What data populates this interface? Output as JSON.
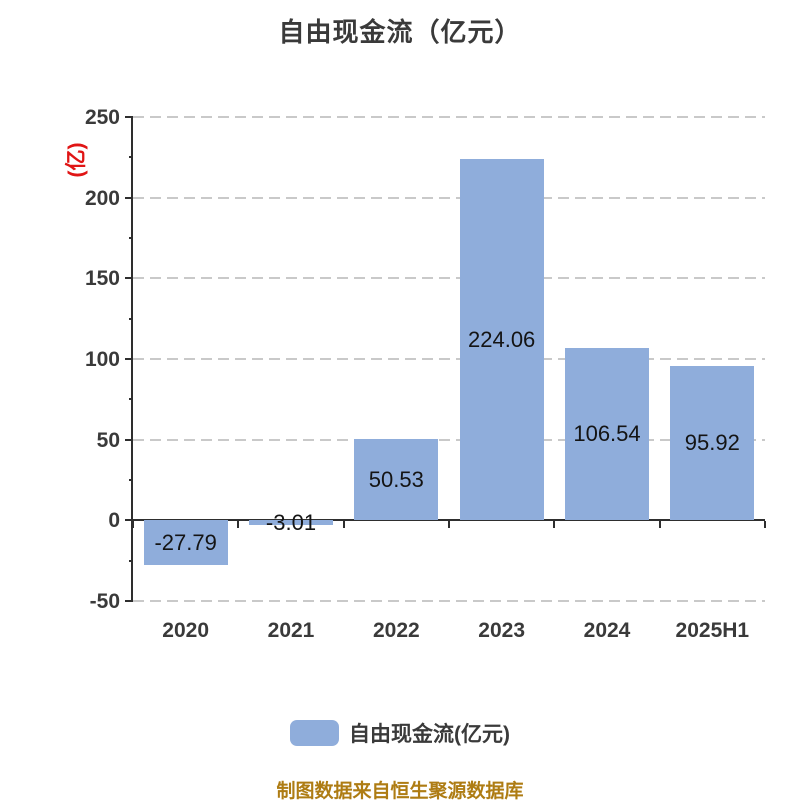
{
  "title": "自由现金流（亿元）",
  "y_axis_name": "(亿)",
  "legend": {
    "label": "自由现金流(亿元)"
  },
  "footer": "制图数据来自恒生聚源数据库",
  "colors": {
    "bar": "#8FADDB",
    "title_text": "#3A3A3A",
    "tick_text": "#3A3A3A",
    "axis_line": "#2E2E2E",
    "gridline": "#C9C9C9",
    "value_label": "#141414",
    "y_axis_name_red": "#E01515",
    "footer_orange": "#AE7C13",
    "background": "#FFFFFF"
  },
  "chart_data": {
    "type": "bar",
    "title": "自由现金流（亿元）",
    "categories": [
      "2020",
      "2021",
      "2022",
      "2023",
      "2024",
      "2025H1"
    ],
    "values": [
      -27.79,
      -3.01,
      50.53,
      224.06,
      106.54,
      95.92
    ],
    "value_labels": [
      "-27.79",
      "-3.01",
      "50.53",
      "224.06",
      "106.54",
      "95.92"
    ],
    "series_name": "自由现金流(亿元)",
    "xlabel": "",
    "ylabel": "(亿)",
    "ylim": [
      -50,
      250
    ],
    "ytick_step": 50,
    "ytick_labels": [
      "250",
      "200",
      "150",
      "100",
      "50",
      "0",
      "-50"
    ],
    "grid": true,
    "grid_style": "dashed",
    "legend_position": "bottom",
    "value_label_position": "inside-middle"
  }
}
